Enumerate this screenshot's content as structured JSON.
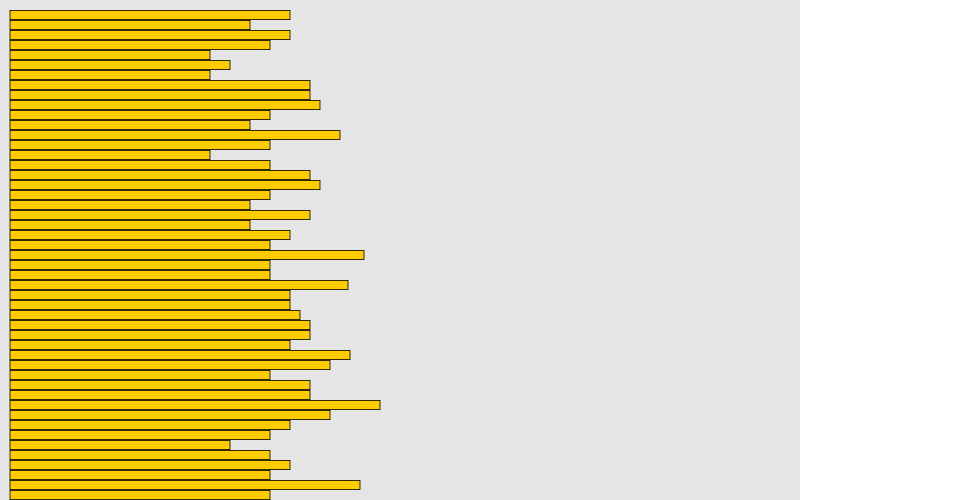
{
  "chart_data": {
    "type": "bar",
    "orientation": "horizontal",
    "color": "#ffcc00",
    "xlim": [
      0,
      790
    ],
    "values": [
      280,
      240,
      280,
      260,
      200,
      220,
      200,
      300,
      300,
      310,
      260,
      240,
      330,
      260,
      200,
      260,
      300,
      310,
      260,
      240,
      300,
      240,
      280,
      260,
      354,
      260,
      260,
      338,
      280,
      280,
      290,
      300,
      300,
      280,
      340,
      320,
      260,
      300,
      300,
      370,
      320,
      280,
      260,
      220,
      260,
      280,
      260,
      350,
      260
    ]
  }
}
